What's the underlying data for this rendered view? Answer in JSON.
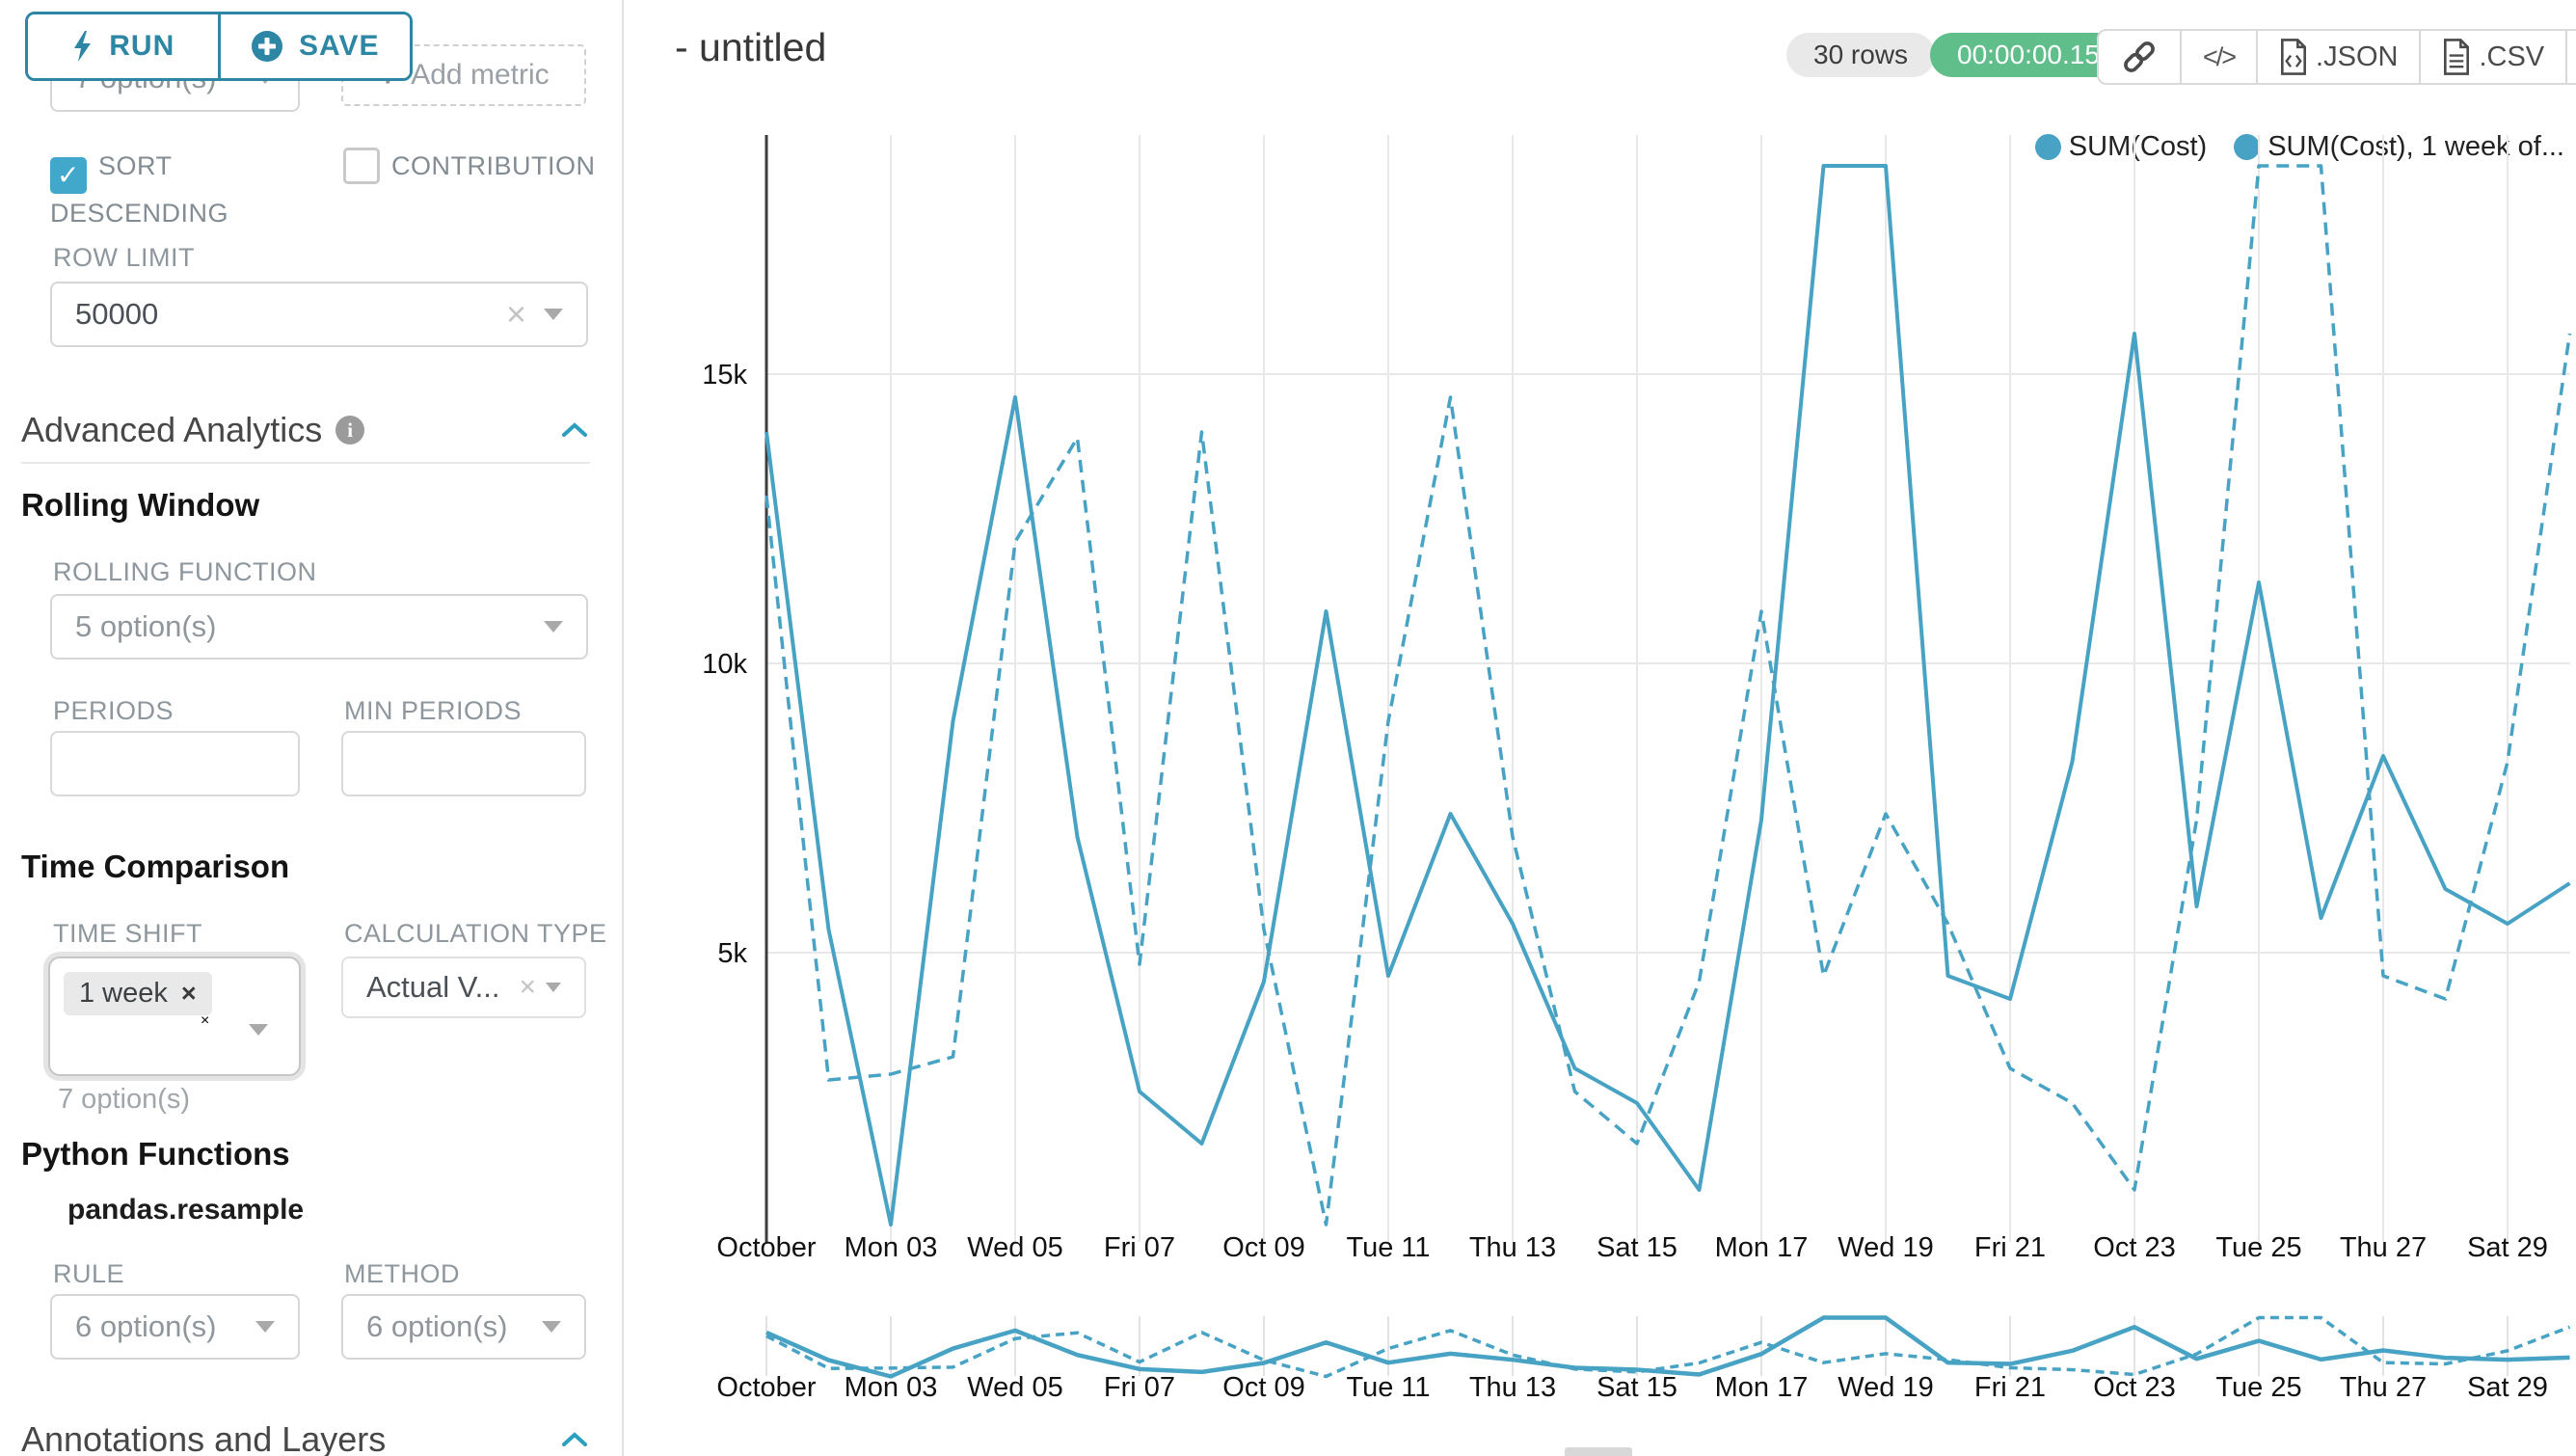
{
  "sidebar": {
    "run_label": "RUN",
    "save_label": "SAVE",
    "groupby_value": "7 option(s)",
    "add_metric_label": "Add metric",
    "sort_descending_label": "SORT DESCENDING",
    "contribution_label": "CONTRIBUTION",
    "row_limit_label": "ROW LIMIT",
    "row_limit_value": "50000",
    "advanced_analytics_title": "Advanced Analytics",
    "rolling_window": {
      "title": "Rolling Window",
      "rolling_function_label": "ROLLING FUNCTION",
      "rolling_function_value": "5 option(s)",
      "periods_label": "PERIODS",
      "min_periods_label": "MIN PERIODS"
    },
    "time_comparison": {
      "title": "Time Comparison",
      "time_shift_label": "TIME SHIFT",
      "time_shift_tag": "1 week",
      "time_shift_helper": "7 option(s)",
      "calculation_type_label": "CALCULATION TYPE",
      "calculation_type_value": "Actual V..."
    },
    "python_functions": {
      "title": "Python Functions",
      "subtitle": "pandas.resample",
      "rule_label": "RULE",
      "rule_value": "6 option(s)",
      "method_label": "METHOD",
      "method_value": "6 option(s)"
    },
    "annotations_title": "Annotations and Layers"
  },
  "header": {
    "title": "- untitled",
    "rows_badge": "30 rows",
    "timer_badge": "00:00:00.15",
    "export_json_label": ".JSON",
    "export_csv_label": ".CSV",
    "toolbar_icons": [
      "link-icon",
      "embed-code-icon",
      "json-file-icon",
      "csv-file-icon",
      "menu-icon"
    ]
  },
  "chart_data": {
    "type": "line",
    "title": "- untitled",
    "x": [
      "Oct 01",
      "Oct 02",
      "Oct 03",
      "Oct 04",
      "Oct 05",
      "Oct 06",
      "Oct 07",
      "Oct 08",
      "Oct 09",
      "Oct 10",
      "Oct 11",
      "Oct 12",
      "Oct 13",
      "Oct 14",
      "Oct 15",
      "Oct 16",
      "Oct 17",
      "Oct 18",
      "Oct 19",
      "Oct 20",
      "Oct 21",
      "Oct 22",
      "Oct 23",
      "Oct 24",
      "Oct 25",
      "Oct 26",
      "Oct 27",
      "Oct 28",
      "Oct 29",
      "Oct 30"
    ],
    "x_tick_labels": [
      "October",
      "Mon 03",
      "Wed 05",
      "Fri 07",
      "Oct 09",
      "Tue 11",
      "Thu 13",
      "Sat 15",
      "Mon 17",
      "Wed 19",
      "Fri 21",
      "Oct 23",
      "Tue 25",
      "Thu 27",
      "Sat 29"
    ],
    "y_tick_labels": [
      "5k",
      "10k",
      "15k"
    ],
    "ylim": [
      0,
      19200
    ],
    "grid": true,
    "legend_position": "top-right",
    "line_color": "#47a2c3",
    "has_mini_preview": true,
    "series": [
      {
        "name": "SUM(Cost)",
        "line_style": "solid",
        "values": [
          14000,
          5400,
          300,
          9000,
          14600,
          7000,
          2600,
          1700,
          4500,
          10900,
          4600,
          7400,
          5500,
          3000,
          2400,
          900,
          7300,
          18600,
          18600,
          4600,
          4200,
          8300,
          15700,
          5800,
          11400,
          5600,
          8400,
          6100,
          5500,
          6200
        ]
      },
      {
        "name": "SUM(Cost), 1 week of...",
        "line_style": "dashed",
        "values": [
          12900,
          2800,
          2900,
          3200,
          12100,
          13900,
          4800,
          14000,
          5400,
          300,
          9000,
          14600,
          7000,
          2600,
          1700,
          4500,
          10900,
          4600,
          7400,
          5500,
          3000,
          2400,
          900,
          7300,
          18600,
          18600,
          4600,
          4200,
          8300,
          15700
        ]
      }
    ]
  }
}
